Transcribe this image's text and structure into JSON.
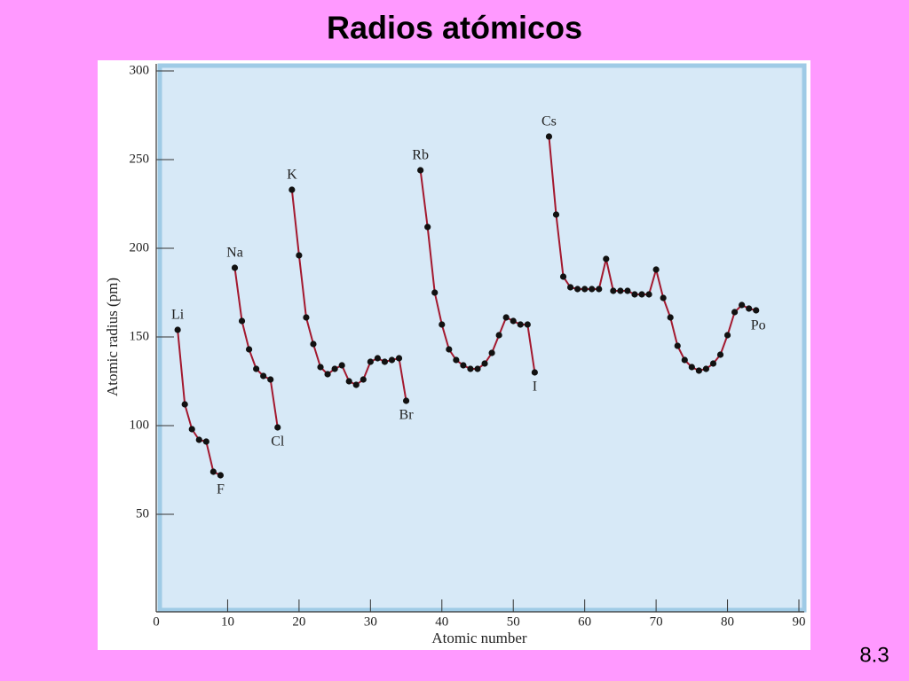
{
  "title": "Radios atómicos",
  "page_number": "8.3",
  "chart_data": {
    "type": "line",
    "xlabel": "Atomic number",
    "ylabel": "Atomic radius (pm)",
    "xlim": [
      0,
      90
    ],
    "xticks": [
      0,
      10,
      20,
      30,
      40,
      50,
      60,
      70,
      80,
      90
    ],
    "ylim": [
      0,
      300
    ],
    "yticks": [
      50,
      100,
      150,
      200,
      250,
      300
    ],
    "line_color": "#a3182e",
    "marker_color": "#111111",
    "series": [
      {
        "x": [
          3,
          4,
          5,
          6,
          7,
          8,
          9
        ],
        "values": [
          154,
          112,
          98,
          92,
          91,
          74,
          72
        ],
        "point_labels": [
          "Li",
          null,
          null,
          null,
          null,
          null,
          "F"
        ]
      },
      {
        "x": [
          11,
          12,
          13,
          14,
          15,
          16,
          17
        ],
        "values": [
          189,
          159,
          143,
          132,
          128,
          126,
          99
        ],
        "point_labels": [
          "Na",
          null,
          null,
          null,
          null,
          null,
          "Cl"
        ]
      },
      {
        "x": [
          19,
          20,
          21,
          22,
          23,
          24,
          25,
          26,
          27,
          28,
          29,
          30,
          31,
          32,
          33,
          34,
          35
        ],
        "values": [
          233,
          196,
          161,
          146,
          133,
          129,
          132,
          134,
          125,
          123,
          126,
          136,
          138,
          136,
          137,
          138,
          114
        ],
        "point_labels": [
          "K",
          null,
          null,
          null,
          null,
          null,
          null,
          null,
          null,
          null,
          null,
          null,
          null,
          null,
          null,
          null,
          "Br"
        ]
      },
      {
        "x": [
          37,
          38,
          39,
          40,
          41,
          42,
          43,
          44,
          45,
          46,
          47,
          48,
          49,
          50,
          51,
          52,
          53
        ],
        "values": [
          244,
          212,
          175,
          157,
          143,
          137,
          134,
          132,
          132,
          135,
          141,
          151,
          161,
          159,
          157,
          157,
          130
        ],
        "point_labels": [
          "Rb",
          null,
          null,
          null,
          null,
          null,
          null,
          null,
          null,
          null,
          null,
          null,
          null,
          null,
          null,
          null,
          "I"
        ]
      },
      {
        "x": [
          55,
          56,
          57,
          58,
          59,
          60,
          61,
          62,
          63,
          64,
          65,
          66,
          67,
          68,
          69,
          70,
          71,
          72,
          73,
          74,
          75,
          76,
          77,
          78,
          79,
          80,
          81,
          82,
          83,
          84
        ],
        "values": [
          263,
          219,
          184,
          178,
          177,
          177,
          177,
          177,
          194,
          176,
          176,
          176,
          174,
          174,
          174,
          188,
          172,
          161,
          145,
          137,
          133,
          131,
          132,
          135,
          140,
          151,
          164,
          168,
          166,
          165
        ],
        "point_labels": [
          "Cs",
          null,
          null,
          null,
          null,
          null,
          null,
          null,
          null,
          null,
          null,
          null,
          null,
          null,
          null,
          null,
          null,
          null,
          null,
          null,
          null,
          null,
          null,
          null,
          null,
          null,
          null,
          null,
          null,
          "Po"
        ]
      }
    ]
  }
}
